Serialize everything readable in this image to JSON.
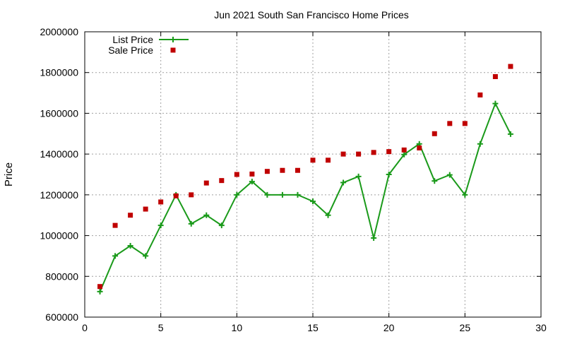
{
  "chart_data": {
    "type": "line",
    "title": "Jun 2021 South San Francisco Home Prices",
    "xlabel": "",
    "ylabel": "Price",
    "xlim": [
      0,
      30
    ],
    "ylim": [
      600000,
      2000000
    ],
    "xticks": [
      0,
      5,
      10,
      15,
      20,
      25,
      30
    ],
    "yticks": [
      600000,
      800000,
      1000000,
      1200000,
      1400000,
      1600000,
      1800000,
      2000000
    ],
    "grid": true,
    "legend_position": "top-left",
    "series": [
      {
        "name": "List Price",
        "style": "line-plus",
        "color": "#1a9a1a",
        "x": [
          1,
          2,
          3,
          4,
          5,
          6,
          7,
          8,
          9,
          10,
          11,
          12,
          13,
          14,
          15,
          16,
          17,
          18,
          19,
          20,
          21,
          22,
          23,
          24,
          25,
          26,
          27,
          28
        ],
        "y": [
          725000,
          900000,
          950000,
          900000,
          1050000,
          1200000,
          1058000,
          1100000,
          1050000,
          1200000,
          1265000,
          1200000,
          1200000,
          1200000,
          1168000,
          1100000,
          1260000,
          1290000,
          988000,
          1300000,
          1398000,
          1450000,
          1268000,
          1298000,
          1200000,
          1450000,
          1648000,
          1498000
        ]
      },
      {
        "name": "Sale Price",
        "style": "square-markers",
        "color": "#c00000",
        "x": [
          1,
          2,
          3,
          4,
          5,
          6,
          7,
          8,
          9,
          10,
          11,
          12,
          13,
          14,
          15,
          16,
          17,
          18,
          19,
          20,
          21,
          22,
          23,
          24,
          25,
          26,
          27,
          28
        ],
        "y": [
          750000,
          1050000,
          1100000,
          1130000,
          1165000,
          1195000,
          1200000,
          1258000,
          1270000,
          1300000,
          1302000,
          1315000,
          1320000,
          1320000,
          1370000,
          1370000,
          1400000,
          1400000,
          1408000,
          1412000,
          1420000,
          1430000,
          1500000,
          1550000,
          1550000,
          1690000,
          1780000,
          1830000
        ]
      }
    ]
  }
}
